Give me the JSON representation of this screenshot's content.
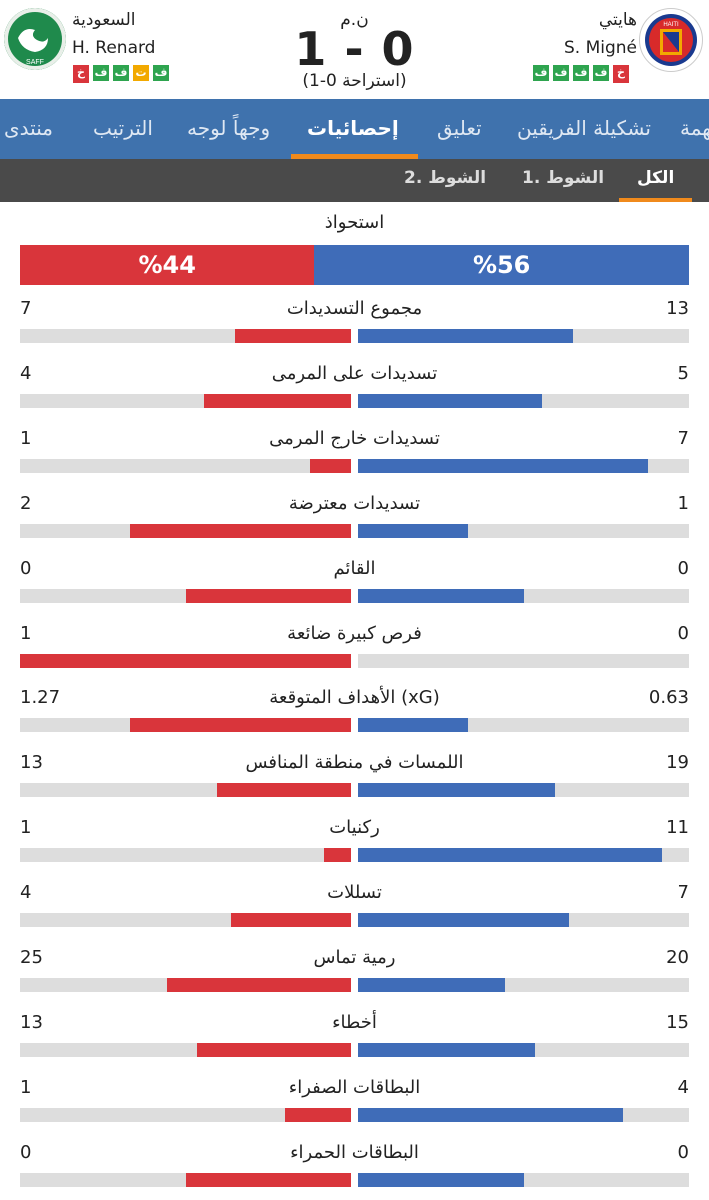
{
  "match": {
    "status": "ن.م",
    "score": "1 - 0",
    "halftime": "(استراحة 0-1)"
  },
  "home": {
    "name": "هايتي",
    "coach": "S. Migné",
    "logo_text": "HAITI",
    "form": [
      "ف",
      "ف",
      "ف",
      "ف",
      "خ"
    ],
    "form_types": [
      "w",
      "w",
      "w",
      "w",
      "l"
    ]
  },
  "away": {
    "name": "السعودية",
    "coach": "H. Renard",
    "logo_text": "SAFF",
    "form": [
      "ف",
      "ت",
      "ف",
      "ف",
      "خ"
    ],
    "form_types": [
      "w",
      "d",
      "w",
      "w",
      "l"
    ]
  },
  "tabs": [
    "منتدى",
    "الترتيب",
    "وجهاً لوجه",
    "إحصائيات",
    "تعليق",
    "تشكيلة الفريقين",
    "مهمة"
  ],
  "active_tab": "إحصائيات",
  "subtabs": [
    "الكل",
    "1. الشوط",
    "2. الشوط"
  ],
  "possession": {
    "label": "استحواذ",
    "home_text": "%56",
    "away_text": "%44",
    "home": 56,
    "away": 44
  },
  "stats": [
    {
      "label": "مجموع التسديدات",
      "home": "13",
      "away": "7",
      "home_frac": 0.65,
      "away_frac": 0.35
    },
    {
      "label": "تسديدات على المرمى",
      "home": "5",
      "away": "4",
      "home_frac": 0.555,
      "away_frac": 0.445
    },
    {
      "label": "تسديدات خارج المرمى",
      "home": "7",
      "away": "1",
      "home_frac": 0.875,
      "away_frac": 0.125
    },
    {
      "label": "تسديدات معترضة",
      "home": "1",
      "away": "2",
      "home_frac": 0.333,
      "away_frac": 0.667
    },
    {
      "label": "القائم",
      "home": "0",
      "away": "0",
      "home_frac": 0.5,
      "away_frac": 0.5
    },
    {
      "label": "فرص كبيرة ضائعة",
      "home": "0",
      "away": "1",
      "home_frac": 0,
      "away_frac": 1
    },
    {
      "label": "الأهداف المتوقعة (xG)",
      "home": "0.63",
      "away": "1.27",
      "home_frac": 0.331,
      "away_frac": 0.669
    },
    {
      "label": "اللمسات في منطقة المنافس",
      "home": "19",
      "away": "13",
      "home_frac": 0.594,
      "away_frac": 0.406
    },
    {
      "label": "ركنيات",
      "home": "11",
      "away": "1",
      "home_frac": 0.917,
      "away_frac": 0.083
    },
    {
      "label": "تسللات",
      "home": "7",
      "away": "4",
      "home_frac": 0.636,
      "away_frac": 0.364
    },
    {
      "label": "رمية تماس",
      "home": "20",
      "away": "25",
      "home_frac": 0.444,
      "away_frac": 0.556
    },
    {
      "label": "أخطاء",
      "home": "15",
      "away": "13",
      "home_frac": 0.536,
      "away_frac": 0.464
    },
    {
      "label": "البطاقات الصفراء",
      "home": "4",
      "away": "1",
      "home_frac": 0.8,
      "away_frac": 0.2
    },
    {
      "label": "البطاقات الحمراء",
      "home": "0",
      "away": "0",
      "home_frac": 0.5,
      "away_frac": 0.5
    }
  ],
  "colors": {
    "home": "#3f6cb8",
    "away": "#d9353b",
    "tabbar": "#3f72ad",
    "accent": "#f08a1c"
  }
}
